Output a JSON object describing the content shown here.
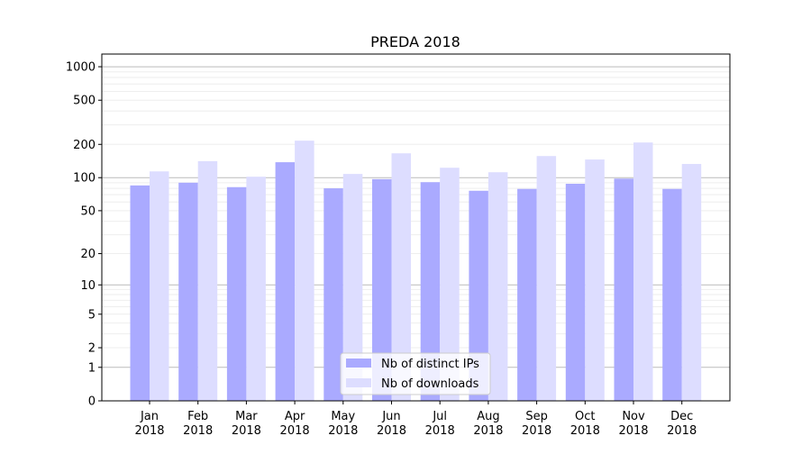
{
  "chart_data": {
    "type": "bar",
    "title": "PREDA 2018",
    "xlabel": "",
    "ylabel": "",
    "yscale": "log(y+1)",
    "ylim": [
      0,
      1300
    ],
    "yticks": [
      0,
      1,
      2,
      5,
      10,
      20,
      50,
      100,
      200,
      500,
      1000
    ],
    "grid": true,
    "legend_position": "lower-center",
    "categories": [
      "Jan\n2018",
      "Feb\n2018",
      "Mar\n2018",
      "Apr\n2018",
      "May\n2018",
      "Jun\n2018",
      "Jul\n2018",
      "Aug\n2018",
      "Sep\n2018",
      "Oct\n2018",
      "Nov\n2018",
      "Dec\n2018"
    ],
    "series": [
      {
        "name": "Nb of distinct IPs",
        "color": "#aaaaff",
        "values": [
          85,
          90,
          82,
          138,
          80,
          97,
          91,
          76,
          79,
          88,
          98,
          79
        ]
      },
      {
        "name": "Nb of downloads",
        "color": "#ddddff",
        "values": [
          114,
          141,
          102,
          216,
          108,
          166,
          123,
          112,
          157,
          146,
          208,
          133
        ]
      }
    ]
  }
}
